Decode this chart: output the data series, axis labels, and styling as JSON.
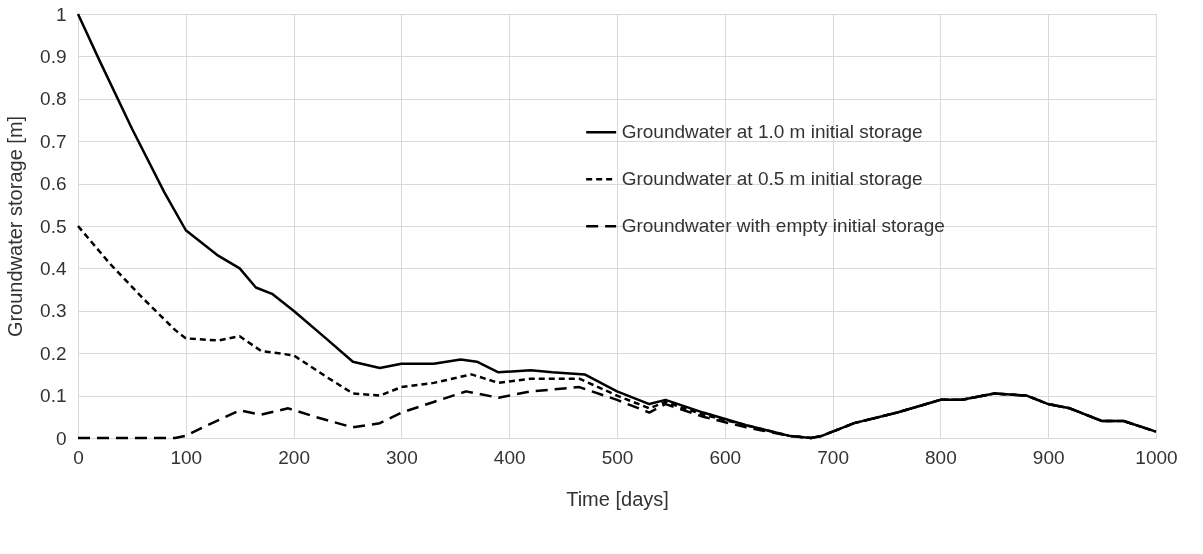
{
  "chart_data": {
    "type": "line",
    "xlabel": "Time [days]",
    "ylabel": "Groundwater storage [m]",
    "xlim": [
      0,
      1000
    ],
    "xticks": [
      0,
      100,
      200,
      300,
      400,
      500,
      600,
      700,
      800,
      900,
      1000
    ],
    "ylim": [
      0,
      1
    ],
    "yticks": [
      0,
      0.1,
      0.2,
      0.3,
      0.4,
      0.5,
      0.6,
      0.7,
      0.8,
      0.9,
      1
    ],
    "grid": true,
    "legend": "right",
    "series": [
      {
        "name": "Groundwater at 1.0 m initial storage",
        "color": "#000000",
        "line_style": "solid",
        "x": [
          0,
          20,
          50,
          80,
          100,
          130,
          150,
          165,
          180,
          200,
          230,
          255,
          280,
          300,
          330,
          355,
          370,
          390,
          420,
          440,
          470,
          500,
          530,
          545,
          580,
          620,
          660,
          680,
          690,
          720,
          760,
          800,
          820,
          850,
          880,
          900,
          920,
          950,
          970,
          1000
        ],
        "values": [
          1.0,
          0.89,
          0.73,
          0.58,
          0.49,
          0.43,
          0.4,
          0.355,
          0.34,
          0.3,
          0.235,
          0.18,
          0.165,
          0.175,
          0.175,
          0.185,
          0.18,
          0.155,
          0.16,
          0.155,
          0.15,
          0.11,
          0.08,
          0.09,
          0.06,
          0.03,
          0.005,
          0.0,
          0.005,
          0.035,
          0.06,
          0.09,
          0.09,
          0.105,
          0.1,
          0.08,
          0.07,
          0.04,
          0.04,
          0.015
        ]
      },
      {
        "name": "Groundwater at 0.5 m initial storage",
        "color": "#000000",
        "line_style": "dashed",
        "x": [
          0,
          30,
          60,
          90,
          100,
          130,
          150,
          170,
          200,
          230,
          255,
          280,
          300,
          330,
          365,
          390,
          420,
          465,
          500,
          530,
          545,
          580,
          620,
          660,
          680,
          690,
          720,
          760,
          800,
          820,
          850,
          880,
          900,
          920,
          950,
          970,
          1000
        ],
        "values": [
          0.5,
          0.41,
          0.33,
          0.255,
          0.235,
          0.23,
          0.24,
          0.205,
          0.195,
          0.145,
          0.105,
          0.1,
          0.12,
          0.13,
          0.15,
          0.13,
          0.14,
          0.14,
          0.1,
          0.07,
          0.085,
          0.055,
          0.03,
          0.005,
          0.0,
          0.005,
          0.035,
          0.06,
          0.09,
          0.09,
          0.105,
          0.1,
          0.08,
          0.07,
          0.04,
          0.04,
          0.015
        ]
      },
      {
        "name": "Groundwater with empty initial storage",
        "color": "#000000",
        "line_style": "dashed",
        "x": [
          0,
          90,
          100,
          120,
          150,
          170,
          195,
          220,
          255,
          280,
          300,
          330,
          360,
          390,
          420,
          465,
          500,
          530,
          545,
          580,
          620,
          660,
          680,
          690,
          720,
          760,
          800,
          820,
          850,
          880,
          900,
          920,
          950,
          970,
          1000
        ],
        "values": [
          0.0,
          0.0,
          0.005,
          0.03,
          0.065,
          0.055,
          0.07,
          0.05,
          0.025,
          0.035,
          0.06,
          0.085,
          0.11,
          0.095,
          0.11,
          0.12,
          0.09,
          0.06,
          0.08,
          0.05,
          0.025,
          0.005,
          0.0,
          0.005,
          0.035,
          0.06,
          0.09,
          0.09,
          0.105,
          0.1,
          0.08,
          0.07,
          0.04,
          0.04,
          0.015
        ]
      }
    ]
  }
}
